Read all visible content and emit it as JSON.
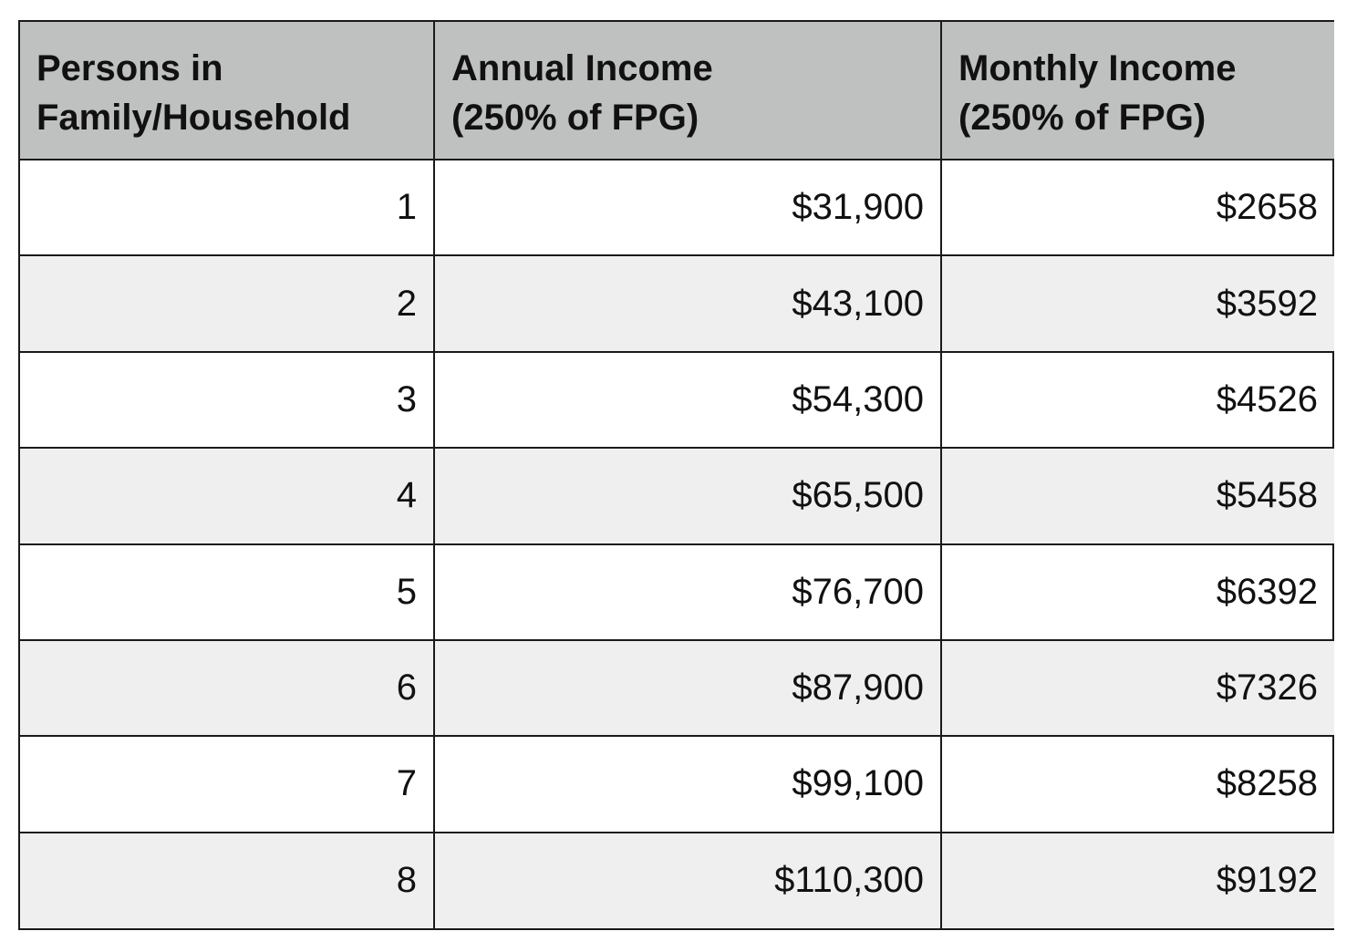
{
  "table": {
    "headers": [
      "Persons in\nFamily/Household",
      "Annual Income\n(250% of FPG)",
      "Monthly Income\n(250% of FPG)"
    ],
    "rows": [
      [
        "1",
        "$31,900",
        "$2658"
      ],
      [
        "2",
        "$43,100",
        "$3592"
      ],
      [
        "3",
        "$54,300",
        "$4526"
      ],
      [
        "4",
        "$65,500",
        "$5458"
      ],
      [
        "5",
        "$76,700",
        "$6392"
      ],
      [
        "6",
        "$87,900",
        "$7326"
      ],
      [
        "7",
        "$99,100",
        "$8258"
      ],
      [
        "8",
        "$110,300",
        "$9192"
      ]
    ],
    "colors": {
      "header_bg": "#bfc1c0",
      "alt_row_bg": "#efefef",
      "border": "#1a1a1a"
    }
  }
}
